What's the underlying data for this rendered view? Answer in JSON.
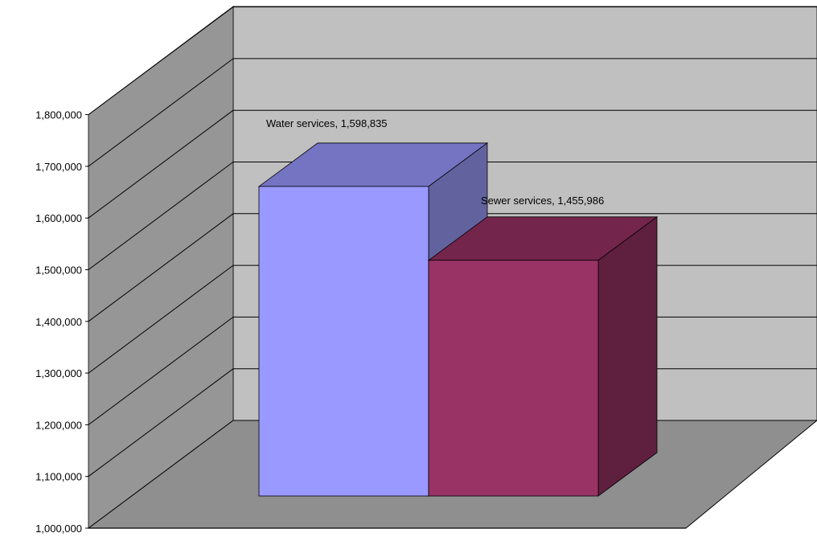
{
  "chart_data": {
    "type": "bar",
    "style": "3d-column",
    "categories": [
      "Water services",
      "Sewer services"
    ],
    "values": [
      1598835,
      1455986
    ],
    "data_labels": [
      "Water services,  1,598,835",
      "Sewer services,  1,455,986"
    ],
    "title": "",
    "xlabel": "",
    "ylabel": "",
    "ylim": [
      1000000,
      1800000
    ],
    "yticks": [
      1000000,
      1100000,
      1200000,
      1300000,
      1400000,
      1500000,
      1600000,
      1700000,
      1800000
    ],
    "ytick_labels": [
      "1,000,000",
      "1,100,000",
      "1,200,000",
      "1,300,000",
      "1,400,000",
      "1,500,000",
      "1,600,000",
      "1,700,000",
      "1,800,000"
    ],
    "grid": true,
    "legend": "none",
    "colors": {
      "bars": [
        "#9999ff",
        "#993366"
      ],
      "bar_tops": [
        "#7474c2",
        "#74254c"
      ],
      "bar_sides": [
        "#62629e",
        "#5f1f3f"
      ],
      "back_wall": "#c0c0c0",
      "side_wall": "#969696",
      "floor": "#8f8f8f",
      "gridline": "#000000"
    }
  }
}
